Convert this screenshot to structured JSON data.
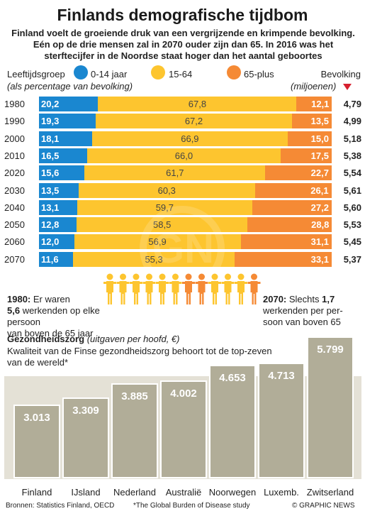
{
  "title": "Finlands demografische tijdbom",
  "subtitle": "Finland voelt de groeiende druk van een vergrijzende en krimpende bevolking. Eén op de drie mensen zal in 2070 ouder zijn dan 65. In 2016 was het sterftecijfer in de Noordse staat hoger dan het aantal geboortes",
  "legend": {
    "group_label": "Leeftijdsgroep",
    "group_sub": "(als percentage van bevolking)",
    "pop_label": "Bevolking",
    "pop_sub": "(miljoenen)",
    "items": [
      {
        "label": "0-14 jaar",
        "color": "#1a87d0"
      },
      {
        "label": "15-64",
        "color": "#fdc52f"
      },
      {
        "label": "65-plus",
        "color": "#f58a35"
      }
    ]
  },
  "notes": {
    "left_year": "1980:",
    "left_text_a": " Er waren",
    "left_bold": "5,6",
    "left_text_b": " werkenden op elke persoon",
    "left_text_c": "van boven de 65 jaar",
    "right_year": "2070:",
    "right_text_a": " Slechts ",
    "right_bold": "1,7",
    "right_text_b": "werkenden per per-",
    "right_text_c": "soon van boven 65"
  },
  "health": {
    "title": "Gezondheidszorg",
    "title_sub": "(uitgaven per hoofd, €)",
    "desc": "Kwaliteit van de Finse gezondheidszorg behoort tot de top-zeven van de wereld*"
  },
  "footer": {
    "source": "Bronnen: Statistics Finland, OECD",
    "footnote": "*The Global Burden of Disease study",
    "credit": "© GRAPHIC NEWS"
  },
  "watermark": "GRAPHIC NEWS",
  "chart_data": [
    {
      "type": "bar",
      "title": "Leeftijdsgroep (als percentage van bevolking)",
      "categories": [
        "1980",
        "1990",
        "2000",
        "2010",
        "2020",
        "2030",
        "2040",
        "2050",
        "2060",
        "2070"
      ],
      "series": [
        {
          "name": "0-14 jaar",
          "values": [
            20.2,
            19.3,
            18.1,
            16.5,
            15.6,
            13.5,
            13.1,
            12.8,
            12.0,
            11.6
          ],
          "labels": [
            "20,2",
            "19,3",
            "18,1",
            "16,5",
            "15,6",
            "13,5",
            "13,1",
            "12,8",
            "12,0",
            "11,6"
          ],
          "color": "#1a87d0"
        },
        {
          "name": "15-64",
          "values": [
            67.8,
            67.2,
            66.9,
            66.0,
            61.7,
            60.3,
            59.7,
            58.5,
            56.9,
            55.3
          ],
          "labels": [
            "67,8",
            "67,2",
            "66,9",
            "66,0",
            "61,7",
            "60,3",
            "59,7",
            "58,5",
            "56,9",
            "55,3"
          ],
          "color": "#fdc52f"
        },
        {
          "name": "65-plus",
          "values": [
            12.1,
            13.5,
            15.0,
            17.5,
            22.7,
            26.1,
            27.2,
            28.8,
            31.1,
            33.1
          ],
          "labels": [
            "12,1",
            "13,5",
            "15,0",
            "17,5",
            "22,7",
            "26,1",
            "27,2",
            "28,8",
            "31,1",
            "33,1"
          ],
          "color": "#f58a35"
        }
      ],
      "population_label": "Bevolking (miljoenen)",
      "population": [
        "4,79",
        "4,99",
        "5,18",
        "5,38",
        "5,54",
        "5,61",
        "5,60",
        "5,53",
        "5,45",
        "5,37"
      ]
    },
    {
      "type": "bar",
      "title": "Gezondheidszorg (uitgaven per hoofd, €)",
      "categories": [
        "Finland",
        "IJsland",
        "Nederland",
        "Australië",
        "Noorwegen",
        "Luxemb.",
        "Zwitserland"
      ],
      "values": [
        3013,
        3309,
        3885,
        4002,
        4653,
        4713,
        5799
      ],
      "labels": [
        "3.013",
        "3.309",
        "3.885",
        "4.002",
        "4.653",
        "4.713",
        "5.799"
      ],
      "color": "#b1ad98"
    }
  ]
}
